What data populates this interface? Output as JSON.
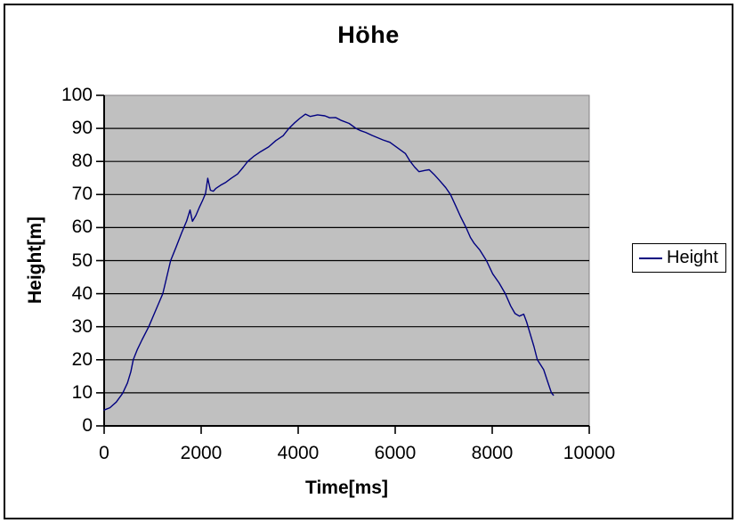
{
  "chart_data": {
    "type": "line",
    "title": "Höhe",
    "xlabel": "Time[ms]",
    "ylabel": "Height[m]",
    "xlim": [
      0,
      10000
    ],
    "ylim": [
      0,
      100
    ],
    "x_ticks": [
      0,
      2000,
      4000,
      6000,
      8000,
      10000
    ],
    "y_ticks": [
      0,
      10,
      20,
      30,
      40,
      50,
      60,
      70,
      80,
      90,
      100
    ],
    "grid": "horizontal-only",
    "legend_position": "right",
    "colors": {
      "plot_background": "#c0c0c0",
      "plot_border": "#848284",
      "grid_line": "#000000",
      "axis_line": "#000000",
      "series_line": "#000080",
      "text": "#000000",
      "page_background": "#ffffff"
    },
    "series": [
      {
        "name": "Height",
        "color": "#000080",
        "points": [
          [
            0,
            4.8
          ],
          [
            120,
            5.5
          ],
          [
            250,
            7.2
          ],
          [
            380,
            9.8
          ],
          [
            480,
            13
          ],
          [
            550,
            16.4
          ],
          [
            600,
            20
          ],
          [
            680,
            23
          ],
          [
            780,
            26
          ],
          [
            920,
            30
          ],
          [
            1050,
            34.5
          ],
          [
            1210,
            40
          ],
          [
            1290,
            45
          ],
          [
            1370,
            50
          ],
          [
            1480,
            54
          ],
          [
            1600,
            58.5
          ],
          [
            1700,
            62
          ],
          [
            1770,
            65.3
          ],
          [
            1820,
            61.9
          ],
          [
            1890,
            63.6
          ],
          [
            1960,
            66
          ],
          [
            2030,
            68.2
          ],
          [
            2090,
            70.3
          ],
          [
            2135,
            74.9
          ],
          [
            2190,
            71.3
          ],
          [
            2250,
            71
          ],
          [
            2300,
            71.8
          ],
          [
            2400,
            72.8
          ],
          [
            2500,
            73.6
          ],
          [
            2620,
            74.9
          ],
          [
            2750,
            76.2
          ],
          [
            2870,
            78.3
          ],
          [
            2960,
            80
          ],
          [
            3080,
            81.5
          ],
          [
            3230,
            83
          ],
          [
            3390,
            84.4
          ],
          [
            3540,
            86.3
          ],
          [
            3690,
            87.8
          ],
          [
            3810,
            90
          ],
          [
            3920,
            91.6
          ],
          [
            4030,
            93
          ],
          [
            4150,
            94.3
          ],
          [
            4250,
            93.6
          ],
          [
            4400,
            94.1
          ],
          [
            4550,
            93.8
          ],
          [
            4650,
            93.2
          ],
          [
            4770,
            93.3
          ],
          [
            4890,
            92.4
          ],
          [
            5050,
            91.5
          ],
          [
            5190,
            90
          ],
          [
            5290,
            89.3
          ],
          [
            5390,
            88.8
          ],
          [
            5520,
            87.9
          ],
          [
            5750,
            86.5
          ],
          [
            5890,
            85.8
          ],
          [
            6030,
            84.3
          ],
          [
            6210,
            82.4
          ],
          [
            6310,
            80
          ],
          [
            6400,
            78.3
          ],
          [
            6490,
            76.9
          ],
          [
            6620,
            77.3
          ],
          [
            6700,
            77.5
          ],
          [
            6800,
            76.1
          ],
          [
            6910,
            74.3
          ],
          [
            7040,
            72.1
          ],
          [
            7140,
            70
          ],
          [
            7250,
            66.5
          ],
          [
            7350,
            63.2
          ],
          [
            7460,
            60
          ],
          [
            7550,
            57
          ],
          [
            7630,
            55.2
          ],
          [
            7740,
            53.3
          ],
          [
            7880,
            50
          ],
          [
            8010,
            46
          ],
          [
            8140,
            43.3
          ],
          [
            8270,
            40
          ],
          [
            8380,
            36.3
          ],
          [
            8470,
            34
          ],
          [
            8560,
            33.2
          ],
          [
            8650,
            33.8
          ],
          [
            8710,
            31.4
          ],
          [
            8770,
            28.4
          ],
          [
            8860,
            24
          ],
          [
            8930,
            20
          ],
          [
            9060,
            17
          ],
          [
            9140,
            13.5
          ],
          [
            9220,
            10
          ],
          [
            9260,
            9.3
          ]
        ]
      }
    ]
  }
}
